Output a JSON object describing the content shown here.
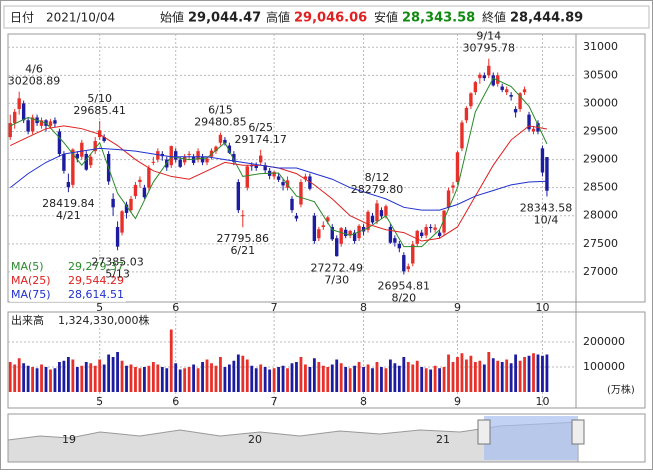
{
  "header": {
    "date_label": "日付",
    "date": "2021/10/04",
    "open_label": "始値",
    "open": "29,044.47",
    "high_label": "高値",
    "high": "29,046.06",
    "low_label": "安値",
    "low": "28,343.58",
    "close_label": "終値",
    "close": "28,444.89"
  },
  "chart_data": [
    {
      "type": "candlestick",
      "up_color": "#e8302a",
      "down_color": "#1c1ca0",
      "xlim": [
        -0.5,
        126.5
      ],
      "ylim": [
        26500,
        31200
      ],
      "yticks": [
        27000,
        27500,
        28000,
        28500,
        29000,
        29500,
        30000,
        30500,
        31000
      ],
      "xticks": [
        {
          "value": 20,
          "label": "5"
        },
        {
          "value": 37,
          "label": "6"
        },
        {
          "value": 59,
          "label": "7"
        },
        {
          "value": 79,
          "label": "8"
        },
        {
          "value": 100,
          "label": "9"
        },
        {
          "value": 119,
          "label": "10"
        }
      ],
      "candles": [
        [
          29400,
          29800,
          29350,
          29650
        ],
        [
          29650,
          29900,
          29550,
          29850
        ],
        [
          29900,
          30208.89,
          29800,
          30090
        ],
        [
          30000,
          30050,
          29650,
          29700
        ],
        [
          29700,
          29750,
          29450,
          29500
        ],
        [
          29500,
          29800,
          29450,
          29750
        ],
        [
          29750,
          29800,
          29600,
          29650
        ],
        [
          29600,
          29750,
          29550,
          29700
        ],
        [
          29700,
          29720,
          29500,
          29600
        ],
        [
          29600,
          29720,
          29550,
          29680
        ],
        [
          29700,
          29750,
          29580,
          29640
        ],
        [
          29500,
          29550,
          29050,
          29100
        ],
        [
          29100,
          29150,
          28750,
          28800
        ],
        [
          28600,
          28750,
          28419.84,
          28508
        ],
        [
          28550,
          29200,
          28500,
          29180
        ],
        [
          29100,
          29150,
          28950,
          29020
        ],
        [
          29050,
          29350,
          29000,
          29300
        ],
        [
          29100,
          29150,
          28800,
          28820
        ],
        [
          28900,
          29100,
          28850,
          29050
        ],
        [
          29150,
          29400,
          29100,
          29330
        ],
        [
          29400,
          29685.41,
          29350,
          29520
        ],
        [
          29400,
          29450,
          29300,
          29330
        ],
        [
          29100,
          29150,
          28550,
          28610
        ],
        [
          28300,
          28400,
          28000,
          28150
        ],
        [
          27800,
          27900,
          27385.03,
          27450
        ],
        [
          27700,
          28100,
          27650,
          28080
        ],
        [
          28200,
          28250,
          27950,
          28050
        ],
        [
          28100,
          28350,
          28050,
          28300
        ],
        [
          28350,
          28600,
          28300,
          28550
        ],
        [
          28600,
          28700,
          28500,
          28640
        ],
        [
          28500,
          28550,
          28300,
          28330
        ],
        [
          28500,
          28900,
          28450,
          28850
        ],
        [
          28950,
          29050,
          28900,
          28960
        ],
        [
          29000,
          29200,
          28950,
          29150
        ],
        [
          29100,
          29150,
          28980,
          29060
        ],
        [
          29000,
          29050,
          28800,
          28860
        ],
        [
          28900,
          29250,
          28850,
          29240
        ],
        [
          29150,
          29200,
          28950,
          29000
        ],
        [
          29000,
          29050,
          28850,
          28870
        ],
        [
          28950,
          29100,
          28900,
          29050
        ],
        [
          29100,
          29150,
          29000,
          29100
        ],
        [
          29050,
          29100,
          28900,
          28940
        ],
        [
          29000,
          29200,
          28950,
          29150
        ],
        [
          29050,
          29100,
          28900,
          28950
        ],
        [
          28950,
          29050,
          28900,
          29020
        ],
        [
          29050,
          29200,
          29000,
          29160
        ],
        [
          29150,
          29250,
          29100,
          29230
        ],
        [
          29300,
          29480.85,
          29250,
          29440
        ],
        [
          29350,
          29400,
          29250,
          29290
        ],
        [
          29250,
          29300,
          29100,
          29120
        ],
        [
          29100,
          29150,
          28900,
          28960
        ],
        [
          28600,
          28650,
          28050,
          28100
        ],
        [
          28000,
          28100,
          27795.86,
          28010
        ],
        [
          28500,
          28900,
          28450,
          28880
        ],
        [
          28900,
          28950,
          28800,
          28880
        ],
        [
          28900,
          28950,
          28800,
          28850
        ],
        [
          28950,
          29174.17,
          28900,
          29070
        ],
        [
          28900,
          28950,
          28750,
          28810
        ],
        [
          28800,
          28850,
          28650,
          28710
        ],
        [
          28700,
          28800,
          28650,
          28780
        ],
        [
          28700,
          28750,
          28600,
          28640
        ],
        [
          28600,
          28650,
          28450,
          28540
        ],
        [
          28500,
          28700,
          28450,
          28630
        ],
        [
          28300,
          28350,
          28050,
          28100
        ],
        [
          28000,
          28050,
          27900,
          27950
        ],
        [
          28200,
          28650,
          28150,
          28600
        ],
        [
          28650,
          28750,
          28600,
          28700
        ],
        [
          28700,
          28750,
          28450,
          28480
        ],
        [
          28000,
          28050,
          27500,
          27550
        ],
        [
          27600,
          27800,
          27550,
          27760
        ],
        [
          27800,
          27900,
          27750,
          27830
        ],
        [
          27900,
          28000,
          27850,
          27970
        ],
        [
          27800,
          27850,
          27550,
          27580
        ],
        [
          27600,
          27650,
          27272.49,
          27280
        ],
        [
          27500,
          27800,
          27450,
          27780
        ],
        [
          27750,
          27800,
          27600,
          27640
        ],
        [
          27650,
          27750,
          27600,
          27730
        ],
        [
          27700,
          27750,
          27500,
          27550
        ],
        [
          27600,
          27850,
          27550,
          27820
        ],
        [
          27800,
          27850,
          27650,
          27720
        ],
        [
          27750,
          28100,
          27700,
          28070
        ],
        [
          28000,
          28050,
          27850,
          27880
        ],
        [
          27900,
          28279.8,
          27850,
          28220
        ],
        [
          28100,
          28150,
          27950,
          27990
        ],
        [
          28000,
          28200,
          27950,
          28170
        ],
        [
          27800,
          27850,
          27500,
          27520
        ],
        [
          27600,
          27650,
          27450,
          27520
        ],
        [
          27500,
          27550,
          27350,
          27420
        ],
        [
          27300,
          27350,
          26954.81,
          27010
        ],
        [
          27050,
          27150,
          27000,
          27100
        ],
        [
          27150,
          27550,
          27100,
          27490
        ],
        [
          27500,
          27750,
          27450,
          27730
        ],
        [
          27700,
          27750,
          27600,
          27640
        ],
        [
          27650,
          27850,
          27600,
          27800
        ],
        [
          27800,
          27850,
          27700,
          27780
        ],
        [
          27750,
          27850,
          27700,
          27790
        ],
        [
          27700,
          27750,
          27600,
          27640
        ],
        [
          27700,
          28100,
          27650,
          28090
        ],
        [
          28150,
          28500,
          28100,
          28450
        ],
        [
          28500,
          28600,
          28400,
          28540
        ],
        [
          28600,
          29150,
          28550,
          29130
        ],
        [
          29200,
          29700,
          29150,
          29660
        ],
        [
          29700,
          29950,
          29650,
          29920
        ],
        [
          29950,
          30200,
          29900,
          30180
        ],
        [
          30200,
          30400,
          30150,
          30380
        ],
        [
          30450,
          30550,
          30350,
          30510
        ],
        [
          30500,
          30550,
          30400,
          30450
        ],
        [
          30500,
          30795.78,
          30450,
          30670
        ],
        [
          30500,
          30550,
          30300,
          30320
        ],
        [
          30350,
          30550,
          30300,
          30500
        ],
        [
          30300,
          30350,
          30200,
          30240
        ],
        [
          30200,
          30300,
          30150,
          30250
        ],
        [
          30150,
          30200,
          30050,
          30120
        ],
        [
          29900,
          29950,
          29750,
          29840
        ],
        [
          29900,
          30200,
          29850,
          30180
        ],
        [
          30200,
          30300,
          30150,
          30250
        ],
        [
          29800,
          29850,
          29500,
          29540
        ],
        [
          29500,
          29600,
          29450,
          29550
        ],
        [
          29650,
          29700,
          29450,
          29500
        ],
        [
          29200,
          29250,
          28700,
          28770
        ],
        [
          29044.47,
          29046.06,
          28343.58,
          28444.89
        ]
      ],
      "series": [
        {
          "name": "MA(5)",
          "color": "#2a8a2a",
          "legend_label": "29,279.37",
          "x": [
            0,
            4,
            8,
            12,
            16,
            20,
            24,
            28,
            32,
            36,
            40,
            44,
            48,
            52,
            56,
            60,
            64,
            68,
            72,
            76,
            80,
            84,
            88,
            92,
            96,
            100,
            104,
            108,
            112,
            116,
            120
          ],
          "values": [
            29600,
            29750,
            29650,
            29300,
            28900,
            29300,
            28400,
            27950,
            28600,
            29050,
            29000,
            29030,
            29300,
            28700,
            28750,
            28760,
            28350,
            28250,
            27750,
            27650,
            27780,
            28000,
            27450,
            27450,
            27750,
            28500,
            29850,
            30450,
            30300,
            29950,
            29279.37
          ]
        },
        {
          "name": "MA(25)",
          "color": "#e02020",
          "legend_label": "29,544.29",
          "x": [
            0,
            4,
            8,
            12,
            16,
            20,
            24,
            28,
            32,
            36,
            40,
            44,
            48,
            52,
            56,
            60,
            64,
            68,
            72,
            76,
            80,
            84,
            88,
            92,
            96,
            100,
            104,
            108,
            112,
            116,
            120
          ],
          "values": [
            29250,
            29400,
            29550,
            29600,
            29550,
            29450,
            29250,
            29000,
            28800,
            28700,
            28650,
            28800,
            28950,
            28900,
            28900,
            28850,
            28750,
            28550,
            28300,
            28000,
            27850,
            27750,
            27700,
            27550,
            27600,
            27800,
            28350,
            28900,
            29350,
            29600,
            29544.29
          ]
        },
        {
          "name": "MA(75)",
          "color": "#2030d0",
          "legend_label": "28,614.51",
          "x": [
            0,
            4,
            8,
            12,
            16,
            20,
            24,
            28,
            32,
            36,
            40,
            44,
            48,
            52,
            56,
            60,
            64,
            68,
            72,
            76,
            80,
            84,
            88,
            92,
            96,
            100,
            104,
            108,
            112,
            116,
            120
          ],
          "values": [
            28500,
            28750,
            28950,
            29100,
            29150,
            29200,
            29180,
            29150,
            29100,
            29050,
            29050,
            29050,
            29000,
            28950,
            28900,
            28850,
            28850,
            28750,
            28650,
            28500,
            28400,
            28300,
            28150,
            28100,
            28100,
            28200,
            28350,
            28450,
            28550,
            28600,
            28614.51
          ]
        }
      ],
      "annotations": [
        {
          "x": 2,
          "value": 30208.89,
          "label": "30208.89",
          "date": "4/6",
          "position": "above"
        },
        {
          "x": 13,
          "value": 28419.84,
          "label": "28419.84",
          "date": "4/21",
          "position": "below"
        },
        {
          "x": 20,
          "value": 29685.41,
          "label": "29685.41",
          "date": "5/10",
          "position": "above"
        },
        {
          "x": 24,
          "value": 27385.03,
          "label": "27385.03",
          "date": "5/13",
          "position": "below"
        },
        {
          "x": 47,
          "value": 29480.85,
          "label": "29480.85",
          "date": "6/15",
          "position": "above"
        },
        {
          "x": 52,
          "value": 27795.86,
          "label": "27795.86",
          "date": "6/21",
          "position": "below"
        },
        {
          "x": 56,
          "value": 29174.17,
          "label": "29174.17",
          "date": "6/25",
          "position": "above"
        },
        {
          "x": 73,
          "value": 27272.49,
          "label": "27272.49",
          "date": "7/30",
          "position": "below"
        },
        {
          "x": 82,
          "value": 28279.8,
          "label": "28279.80",
          "date": "8/12",
          "position": "above"
        },
        {
          "x": 88,
          "value": 26954.81,
          "label": "26954.81",
          "date": "8/20",
          "position": "below"
        },
        {
          "x": 107,
          "value": 30795.78,
          "label": "30795.78",
          "date": "9/14",
          "position": "above"
        },
        {
          "x": 120,
          "value": 28343.58,
          "label": "28343.58",
          "date": "10/4",
          "position": "below"
        }
      ]
    },
    {
      "type": "bar",
      "title": "出来高",
      "total": "1,324,330,000株",
      "unit": "(万株)",
      "xlim": [
        -0.5,
        126.5
      ],
      "ylim": [
        0,
        320000
      ],
      "yticks": [
        100000,
        200000
      ],
      "values": [
        120000,
        110000,
        135000,
        115000,
        105000,
        100000,
        95000,
        110000,
        100000,
        90000,
        95000,
        120000,
        125000,
        140000,
        130000,
        100000,
        105000,
        120000,
        115000,
        105000,
        130000,
        110000,
        150000,
        140000,
        160000,
        125000,
        105000,
        110000,
        100000,
        95000,
        100000,
        105000,
        120000,
        110000,
        100000,
        95000,
        250000,
        115000,
        90000,
        95000,
        100000,
        110000,
        95000,
        120000,
        130000,
        115000,
        105000,
        140000,
        100000,
        110000,
        125000,
        150000,
        145000,
        130000,
        105000,
        95000,
        110000,
        100000,
        90000,
        95000,
        100000,
        105000,
        95000,
        115000,
        120000,
        140000,
        110000,
        100000,
        135000,
        120000,
        105000,
        100000,
        110000,
        130000,
        115000,
        100000,
        95000,
        105000,
        120000,
        100000,
        110000,
        95000,
        120000,
        100000,
        95000,
        130000,
        115000,
        105000,
        140000,
        120000,
        110000,
        125000,
        100000,
        95000,
        90000,
        105000,
        95000,
        100000,
        150000,
        120000,
        140000,
        155000,
        130000,
        145000,
        120000,
        125000,
        110000,
        160000,
        135000,
        125000,
        120000,
        130000,
        115000,
        150000,
        125000,
        140000,
        145000,
        155000,
        150000,
        145000,
        150000
      ]
    }
  ],
  "navigator": {
    "labels": [
      "19",
      "20",
      "21"
    ]
  }
}
